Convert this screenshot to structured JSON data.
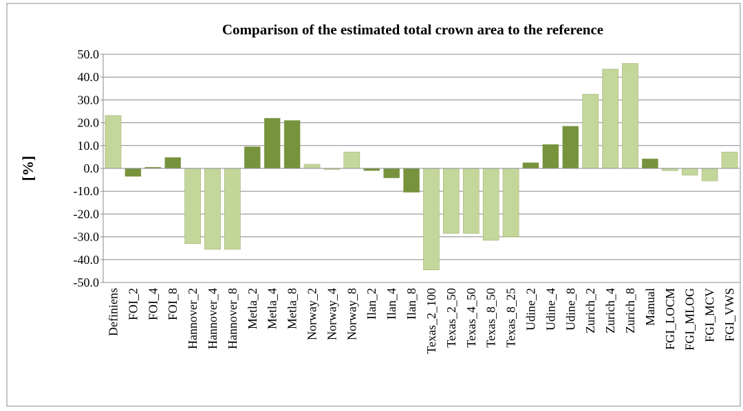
{
  "chart_data": {
    "type": "bar",
    "title": "Comparison of the estimated total crown area to the reference",
    "ylabel": "[%]",
    "categories": [
      "Definiens",
      "FOI_2",
      "FOI_4",
      "FOI_8",
      "Hannover_2",
      "Hannover_4",
      "Hannover_8",
      "Metla_2",
      "Metla_4",
      "Metla_8",
      "Norway_2",
      "Norway_4",
      "Norway_8",
      "Ilan_2",
      "Ilan_4",
      "Ilan_8",
      "Texas_2_100",
      "Texas_2_50",
      "Texas_4_50",
      "Texas_8_50",
      "Texas_8_25",
      "Udine_2",
      "Udine_4",
      "Udine_8",
      "Zurich_2",
      "Zurich_4",
      "Zurich_8",
      "Manual",
      "FGI_LOCM",
      "FGI_MLOG",
      "FGI_MCV",
      "FGI_VWS"
    ],
    "values": [
      23.2,
      -3.5,
      0.5,
      4.8,
      -33,
      -35.5,
      -35.5,
      9.5,
      22,
      21,
      1.8,
      -0.5,
      7.2,
      -1.0,
      -4.2,
      -10.5,
      -44.5,
      -28.5,
      -28.5,
      -31.5,
      -30,
      2.5,
      10.5,
      18.5,
      32.5,
      43.5,
      46,
      4.2,
      -1.0,
      -3.0,
      -5.5,
      7.2
    ],
    "colors": [
      "#c4d79b",
      "#77933c",
      "#77933c",
      "#77933c",
      "#c4d79b",
      "#c4d79b",
      "#c4d79b",
      "#77933c",
      "#77933c",
      "#77933c",
      "#c4d79b",
      "#c4d79b",
      "#c4d79b",
      "#77933c",
      "#77933c",
      "#77933c",
      "#c4d79b",
      "#c4d79b",
      "#c4d79b",
      "#c4d79b",
      "#c4d79b",
      "#77933c",
      "#77933c",
      "#77933c",
      "#c4d79b",
      "#c4d79b",
      "#c4d79b",
      "#77933c",
      "#c4d79b",
      "#c4d79b",
      "#c4d79b",
      "#c4d79b"
    ],
    "ylim": [
      -50,
      50
    ],
    "yticks": [
      {
        "value": -50,
        "label": "-50.0"
      },
      {
        "value": -40,
        "label": "-40.0"
      },
      {
        "value": -30,
        "label": "-30.0"
      },
      {
        "value": -20,
        "label": "-20.0"
      },
      {
        "value": -10,
        "label": "-10.0"
      },
      {
        "value": 0,
        "label": "0.0"
      },
      {
        "value": 10,
        "label": "10.0"
      },
      {
        "value": 20,
        "label": "20.0"
      },
      {
        "value": 30,
        "label": "30.0"
      },
      {
        "value": 40,
        "label": "40.0"
      },
      {
        "value": 50,
        "label": "50.0"
      }
    ],
    "grid": true
  }
}
